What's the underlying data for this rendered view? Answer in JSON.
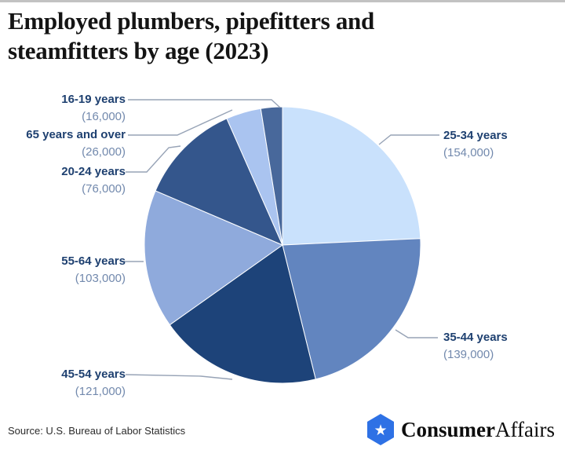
{
  "title": {
    "line1": "Employed plumbers, pipefitters and",
    "line2": "steamfitters by age (2023)"
  },
  "source": "Source: U.S. Bureau of Labor Statistics",
  "logo": {
    "brand_bold": "Consumer",
    "brand_regular": "Affairs",
    "badge_color": "#2e71e5",
    "star_icon": "★"
  },
  "chart_data": {
    "type": "pie",
    "title": "Employed plumbers, pipefitters and steamfitters by age (2023)",
    "unit": "employed persons",
    "total": 635000,
    "start_at": "12 o'clock",
    "direction": "clockwise",
    "legend_position": "callout-labels",
    "slices": [
      {
        "label": "25-34 years",
        "value": 154000,
        "value_display": "(154,000)",
        "color": "#c9e1fc"
      },
      {
        "label": "35-44 years",
        "value": 139000,
        "value_display": "(139,000)",
        "color": "#6285bf"
      },
      {
        "label": "45-54 years",
        "value": 121000,
        "value_display": "(121,000)",
        "color": "#1d4379"
      },
      {
        "label": "55-64 years",
        "value": 103000,
        "value_display": "(103,000)",
        "color": "#8faadc"
      },
      {
        "label": "20-24 years",
        "value": 76000,
        "value_display": "(76,000)",
        "color": "#34568c"
      },
      {
        "label": "65 years and over",
        "value": 26000,
        "value_display": "(26,000)",
        "color": "#aac4f0"
      },
      {
        "label": "16-19 years",
        "value": 16000,
        "value_display": "(16,000)",
        "color": "#48689b"
      }
    ]
  }
}
